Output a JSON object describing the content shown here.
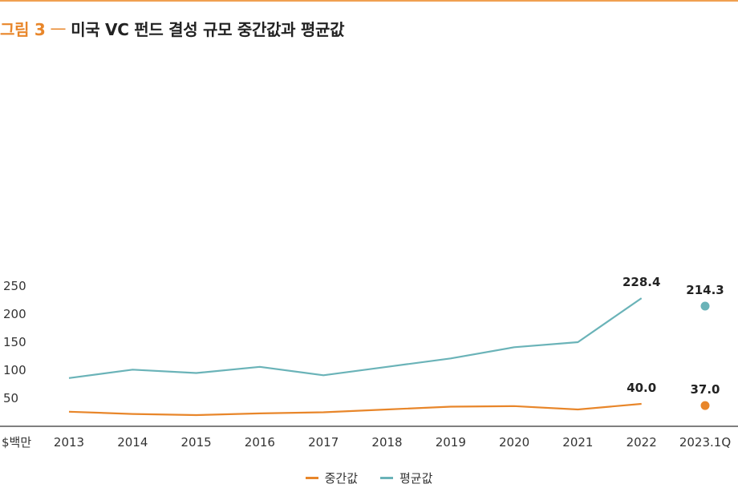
{
  "title": {
    "figure_label": "그림 3",
    "separator": "—",
    "text": "미국 VC 펀드 결성 규모 중간값과 평균값"
  },
  "colors": {
    "accent": "#e8862a",
    "median": "#e8862a",
    "mean": "#6ab3b8",
    "axis": "#333333",
    "top_rule": "#f0a050"
  },
  "chart_data": {
    "type": "line",
    "title": "미국 VC 펀드 결성 규모 중간값과 평균값",
    "ylabel": "$백만",
    "ylim": [
      0,
      250
    ],
    "yticks": [
      50,
      100,
      150,
      200,
      250
    ],
    "categories": [
      "2013",
      "2014",
      "2015",
      "2016",
      "2017",
      "2018",
      "2019",
      "2020",
      "2021",
      "2022",
      "2023.1Q"
    ],
    "grid": false,
    "legend_position": "bottom-center",
    "series": [
      {
        "name": "중간값",
        "color": "#e8862a",
        "line_values": [
          26,
          22,
          20,
          23,
          25,
          30,
          35,
          36,
          30,
          40.0
        ],
        "point": {
          "category": "2023.1Q",
          "value": 37.0
        },
        "labels": {
          "2022": "40.0",
          "2023.1Q": "37.0"
        }
      },
      {
        "name": "평균값",
        "color": "#6ab3b8",
        "line_values": [
          86,
          101,
          95,
          106,
          91,
          106,
          121,
          141,
          150,
          228.4
        ],
        "point": {
          "category": "2023.1Q",
          "value": 214.3
        },
        "labels": {
          "2022": "228.4",
          "2023.1Q": "214.3"
        }
      }
    ]
  }
}
